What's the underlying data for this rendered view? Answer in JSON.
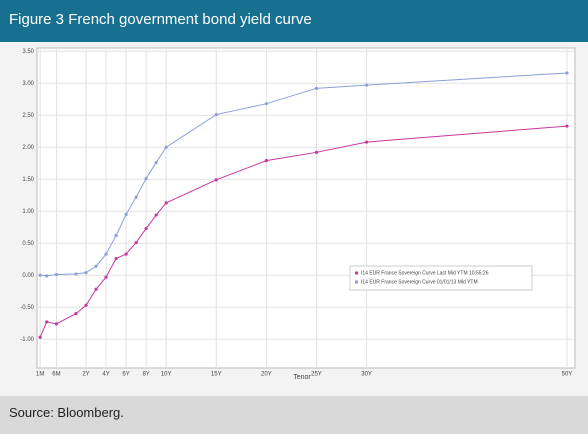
{
  "chart_data": {
    "type": "line",
    "title": "Figure 3  French government bond yield curve",
    "source": "Source: Bloomberg.",
    "x_label": "Tenor",
    "x": [
      0.0833,
      0.25,
      0.5,
      1,
      2,
      3,
      4,
      5,
      6,
      7,
      8,
      9,
      10,
      15,
      20,
      25,
      30,
      50
    ],
    "xlim": [
      0.0833,
      50
    ],
    "xticks": [
      {
        "value": 0.0833,
        "label": "1M"
      },
      {
        "value": 0.5,
        "label": "6M"
      },
      {
        "value": 2,
        "label": "2Y"
      },
      {
        "value": 4,
        "label": "4Y"
      },
      {
        "value": 6,
        "label": "6Y"
      },
      {
        "value": 8,
        "label": "8Y"
      },
      {
        "value": 10,
        "label": "10Y"
      },
      {
        "value": 15,
        "label": "15Y"
      },
      {
        "value": 20,
        "label": "20Y"
      },
      {
        "value": 25,
        "label": "25Y"
      },
      {
        "value": 30,
        "label": "30Y"
      },
      {
        "value": 50,
        "label": "50Y"
      }
    ],
    "ylim": [
      -1.45,
      3.55
    ],
    "yticks": [
      {
        "value": 3.5,
        "label": "3.50"
      },
      {
        "value": 3,
        "label": "3.00"
      },
      {
        "value": 2.5,
        "label": "2.50"
      },
      {
        "value": 2,
        "label": "2.00"
      },
      {
        "value": 1.5,
        "label": "1.50"
      },
      {
        "value": 1,
        "label": "1.00"
      },
      {
        "value": 0.5,
        "label": "0.50"
      },
      {
        "value": 0,
        "label": "0.00"
      },
      {
        "value": -0.5,
        "label": "-0.50"
      },
      {
        "value": -1,
        "label": "-1.00"
      }
    ],
    "grid": true,
    "legend": "right",
    "series": [
      {
        "name": "I14 EUR France Sovereign Curve Last Mid YTM 10:55:26",
        "color": "#c8379b",
        "values": [
          -0.97,
          -0.73,
          -0.76,
          -0.6,
          -0.47,
          -0.22,
          -0.03,
          0.26,
          0.33,
          0.51,
          0.73,
          0.94,
          1.13,
          1.49,
          1.79,
          1.92,
          2.08,
          2.33
        ]
      },
      {
        "name": "I14 EUR France Sovereign Curve 01/01/13 Mid YTM",
        "color": "#8c9fdc",
        "values": [
          0.0,
          -0.01,
          0.01,
          0.02,
          0.04,
          0.14,
          0.33,
          0.62,
          0.95,
          1.22,
          1.51,
          1.76,
          2.0,
          2.51,
          2.68,
          2.92,
          2.97,
          3.16
        ]
      }
    ]
  }
}
